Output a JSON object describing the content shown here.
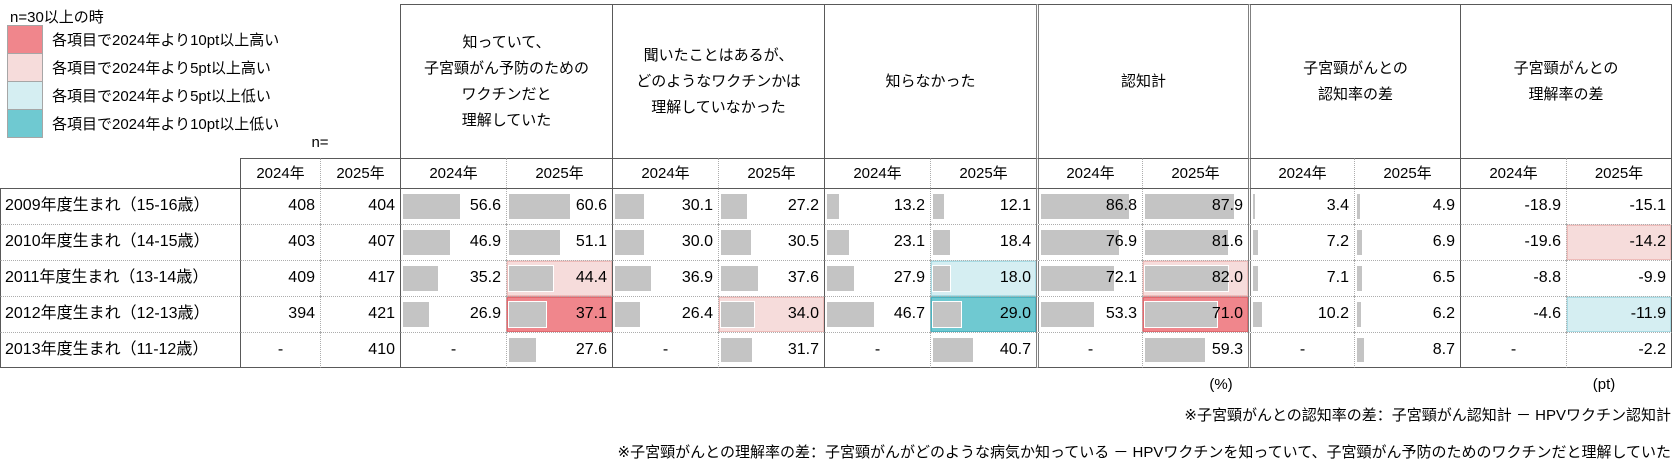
{
  "legend": {
    "title": "n=30以上の時",
    "items": [
      {
        "key": "up10",
        "label": "各項目で2024年より10pt以上高い",
        "color": "#f0868c"
      },
      {
        "key": "up5",
        "label": "各項目で2024年より5pt以上高い",
        "color": "#f6dcdb"
      },
      {
        "key": "down5",
        "label": "各項目で2024年より5pt以上低い",
        "color": "#d5eef2"
      },
      {
        "key": "down10",
        "label": "各項目で2024年より10pt以上低い",
        "color": "#6fc9d1"
      }
    ]
  },
  "chart_data": {
    "type": "table",
    "n_label": "n=",
    "year_headers": [
      "2024年",
      "2025年"
    ],
    "col_groups": [
      {
        "label": "知っていて、\n子宮頸がん予防のための\nワクチンだと\n理解していた"
      },
      {
        "label": "聞いたことはあるが、\nどのようなワクチンかは\n理解していなかった"
      },
      {
        "label": "知らなかった"
      },
      {
        "label": "認知計"
      },
      {
        "label": "子宮頸がんとの\n認知率の差"
      },
      {
        "label": "子宮頸がんとの\n理解率の差"
      }
    ],
    "rows": [
      {
        "label": "2009年度生まれ（15-16歳）",
        "n": [
          "408",
          "404"
        ],
        "cells": [
          {
            "v": "56.6",
            "bar": 56.6
          },
          {
            "v": "60.6",
            "bar": 60.6
          },
          {
            "v": "30.1",
            "bar": 30.1
          },
          {
            "v": "27.2",
            "bar": 27.2
          },
          {
            "v": "13.2",
            "bar": 13.2
          },
          {
            "v": "12.1",
            "bar": 12.1
          },
          {
            "v": "86.8",
            "bar": 86.8
          },
          {
            "v": "87.9",
            "bar": 87.9
          },
          {
            "v": "3.4",
            "bar": 3.4
          },
          {
            "v": "4.9",
            "bar": 4.9
          },
          {
            "v": "-18.9"
          },
          {
            "v": "-15.1"
          }
        ]
      },
      {
        "label": "2010年度生まれ（14-15歳）",
        "n": [
          "403",
          "407"
        ],
        "cells": [
          {
            "v": "46.9",
            "bar": 46.9
          },
          {
            "v": "51.1",
            "bar": 51.1
          },
          {
            "v": "30.0",
            "bar": 30.0
          },
          {
            "v": "30.5",
            "bar": 30.5
          },
          {
            "v": "23.1",
            "bar": 23.1
          },
          {
            "v": "18.4",
            "bar": 18.4
          },
          {
            "v": "76.9",
            "bar": 76.9
          },
          {
            "v": "81.6",
            "bar": 81.6
          },
          {
            "v": "7.2",
            "bar": 7.2
          },
          {
            "v": "6.9",
            "bar": 6.9
          },
          {
            "v": "-19.6"
          },
          {
            "v": "-14.2",
            "hl": "up5"
          }
        ]
      },
      {
        "label": "2011年度生まれ（13-14歳）",
        "n": [
          "409",
          "417"
        ],
        "cells": [
          {
            "v": "35.2",
            "bar": 35.2
          },
          {
            "v": "44.4",
            "bar": 44.4,
            "hl": "up5"
          },
          {
            "v": "36.9",
            "bar": 36.9
          },
          {
            "v": "37.6",
            "bar": 37.6
          },
          {
            "v": "27.9",
            "bar": 27.9
          },
          {
            "v": "18.0",
            "bar": 18.0,
            "hl": "down5"
          },
          {
            "v": "72.1",
            "bar": 72.1
          },
          {
            "v": "82.0",
            "bar": 82.0,
            "hl": "up5"
          },
          {
            "v": "7.1",
            "bar": 7.1
          },
          {
            "v": "6.5",
            "bar": 6.5
          },
          {
            "v": "-8.8"
          },
          {
            "v": "-9.9"
          }
        ]
      },
      {
        "label": "2012年度生まれ（12-13歳）",
        "n": [
          "394",
          "421"
        ],
        "cells": [
          {
            "v": "26.9",
            "bar": 26.9
          },
          {
            "v": "37.1",
            "bar": 37.1,
            "hl": "up10"
          },
          {
            "v": "26.4",
            "bar": 26.4
          },
          {
            "v": "34.0",
            "bar": 34.0,
            "hl": "up5"
          },
          {
            "v": "46.7",
            "bar": 46.7
          },
          {
            "v": "29.0",
            "bar": 29.0,
            "hl": "down10"
          },
          {
            "v": "53.3",
            "bar": 53.3
          },
          {
            "v": "71.0",
            "bar": 71.0,
            "hl": "up10"
          },
          {
            "v": "10.2",
            "bar": 10.2
          },
          {
            "v": "6.2",
            "bar": 6.2
          },
          {
            "v": "-4.6"
          },
          {
            "v": "-11.9",
            "hl": "down5"
          }
        ]
      },
      {
        "label": "2013年度生まれ（11-12歳）",
        "n": [
          "-",
          "410"
        ],
        "cells": [
          {
            "v": "-"
          },
          {
            "v": "27.6",
            "bar": 27.6
          },
          {
            "v": "-"
          },
          {
            "v": "31.7",
            "bar": 31.7
          },
          {
            "v": "-"
          },
          {
            "v": "40.7",
            "bar": 40.7
          },
          {
            "v": "-"
          },
          {
            "v": "59.3",
            "bar": 59.3
          },
          {
            "v": "-"
          },
          {
            "v": "8.7",
            "bar": 8.7
          },
          {
            "v": "-"
          },
          {
            "v": "-2.2"
          }
        ]
      }
    ],
    "unit_percent": "(%)",
    "unit_pt": "(pt)"
  },
  "footnotes": {
    "note1": "※子宮頸がんとの認知率の差：子宮頸がん認知計 － HPVワクチン認知計",
    "note2": "※子宮頸がんとの理解率の差：子宮頸がんがどのような病気か知っている － HPVワクチンを知っていて、子宮頸がん予防のためのワクチンだと理解していた"
  }
}
